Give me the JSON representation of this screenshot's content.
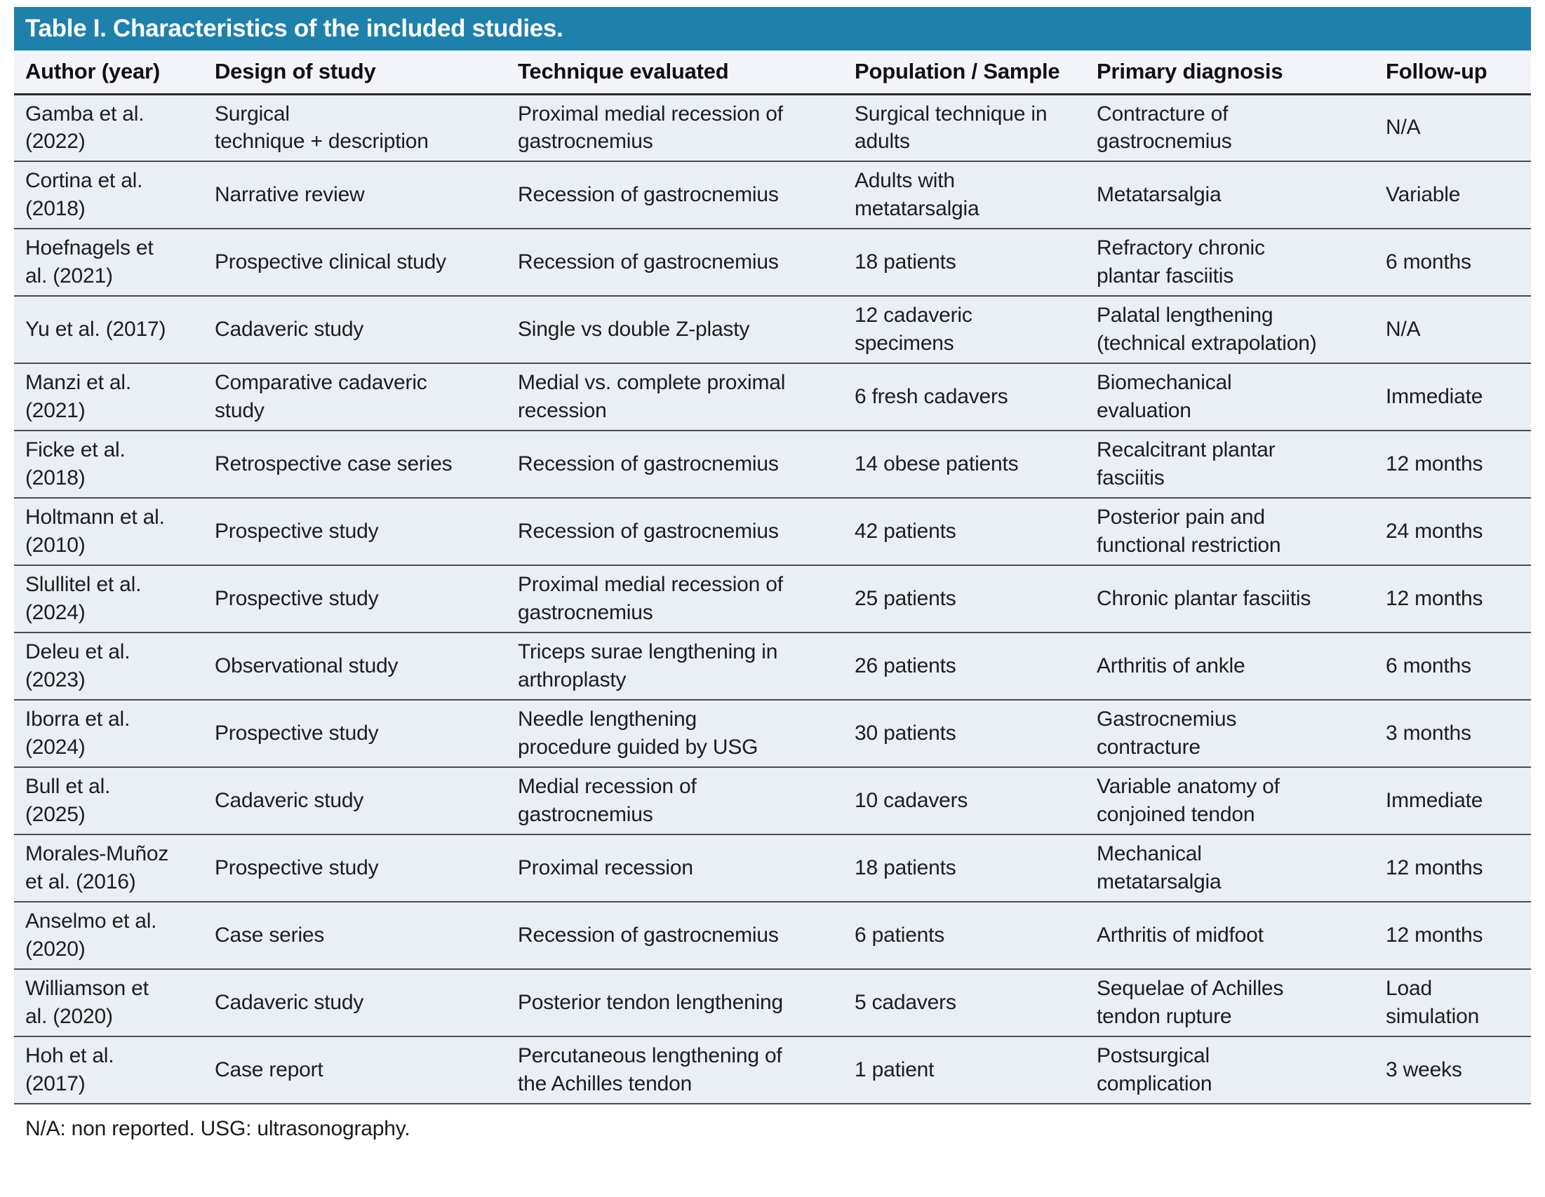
{
  "colors": {
    "accent_teal": "#1E81AC",
    "header_row_bg": "#F2F4F9",
    "body_row_bg": "#EAEEF5",
    "title_text": "#FFFFFF",
    "body_text": "#1D1D1D"
  },
  "table": {
    "title": "Table I. Characteristics of the included studies.",
    "columns": [
      {
        "key": "author",
        "label": "Author (year)"
      },
      {
        "key": "design",
        "label": "Design of study"
      },
      {
        "key": "technique",
        "label": "Technique evaluated"
      },
      {
        "key": "population",
        "label": "Population / Sample"
      },
      {
        "key": "diagnosis",
        "label": "Primary diagnosis"
      },
      {
        "key": "followup",
        "label": "Follow-up"
      }
    ],
    "rows": [
      {
        "author": "Gamba et al.\n(2022)",
        "design": "Surgical\ntechnique + description",
        "technique": "Proximal medial recession of\ngastrocnemius",
        "population": "Surgical technique in\nadults",
        "diagnosis": "Contracture of\ngastrocnemius",
        "followup": "N/A"
      },
      {
        "author": "Cortina et al.\n(2018)",
        "design": "Narrative review",
        "technique": "Recession of gastrocnemius",
        "population": "Adults with\nmetatarsalgia",
        "diagnosis": "Metatarsalgia",
        "followup": "Variable"
      },
      {
        "author": "Hoefnagels et\nal. (2021)",
        "design": "Prospective clinical study",
        "technique": "Recession of gastrocnemius",
        "population": "18 patients",
        "diagnosis": "Refractory chronic\nplantar fasciitis",
        "followup": "6 months"
      },
      {
        "author": "Yu et al. (2017)",
        "design": "Cadaveric study",
        "technique": "Single vs double Z-plasty",
        "population": "12 cadaveric\nspecimens",
        "diagnosis": "Palatal lengthening\n(technical extrapolation)",
        "followup": "N/A"
      },
      {
        "author": "Manzi et al.\n(2021)",
        "design": "Comparative cadaveric\nstudy",
        "technique": "Medial vs. complete proximal\nrecession",
        "population": "6 fresh cadavers",
        "diagnosis": "Biomechanical\nevaluation",
        "followup": "Immediate"
      },
      {
        "author": "Ficke et al.\n(2018)",
        "design": "Retrospective case series",
        "technique": "Recession of gastrocnemius",
        "population": "14 obese patients",
        "diagnosis": "Recalcitrant plantar\nfasciitis",
        "followup": "12 months"
      },
      {
        "author": "Holtmann et al.\n(2010)",
        "design": "Prospective study",
        "technique": "Recession of gastrocnemius",
        "population": "42 patients",
        "diagnosis": "Posterior pain and\nfunctional restriction",
        "followup": "24 months"
      },
      {
        "author": "Slullitel et al.\n(2024)",
        "design": "Prospective study",
        "technique": "Proximal medial recession of\ngastrocnemius",
        "population": "25 patients",
        "diagnosis": "Chronic plantar fasciitis",
        "followup": "12 months"
      },
      {
        "author": "Deleu et al.\n(2023)",
        "design": "Observational study",
        "technique": "Triceps surae lengthening in\narthroplasty",
        "population": "26 patients",
        "diagnosis": "Arthritis of ankle",
        "followup": "6 months"
      },
      {
        "author": "Iborra et al.\n(2024)",
        "design": "Prospective study",
        "technique": "Needle lengthening\nprocedure guided by USG",
        "population": "30 patients",
        "diagnosis": "Gastrocnemius\ncontracture",
        "followup": "3 months"
      },
      {
        "author": "Bull et al.\n(2025)",
        "design": "Cadaveric study",
        "technique": "Medial recession of\ngastrocnemius",
        "population": "10 cadavers",
        "diagnosis": "Variable anatomy of\nconjoined tendon",
        "followup": "Immediate"
      },
      {
        "author": "Morales-Muñoz\net al. (2016)",
        "design": "Prospective study",
        "technique": "Proximal recession",
        "population": "18 patients",
        "diagnosis": "Mechanical\nmetatarsalgia",
        "followup": "12 months"
      },
      {
        "author": "Anselmo et al.\n(2020)",
        "design": "Case series",
        "technique": "Recession of gastrocnemius",
        "population": "6 patients",
        "diagnosis": "Arthritis of midfoot",
        "followup": "12 months"
      },
      {
        "author": "Williamson et\nal. (2020)",
        "design": "Cadaveric study",
        "technique": "Posterior tendon lengthening",
        "population": "5 cadavers",
        "diagnosis": "Sequelae of Achilles\ntendon rupture",
        "followup": "Load\nsimulation"
      },
      {
        "author": "Hoh et al.\n(2017)",
        "design": "Case report",
        "technique": "Percutaneous lengthening of\nthe Achilles tendon",
        "population": "1 patient",
        "diagnosis": "Postsurgical\ncomplication",
        "followup": "3 weeks"
      }
    ]
  },
  "footnote": "N/A: non reported. USG: ultrasonography."
}
